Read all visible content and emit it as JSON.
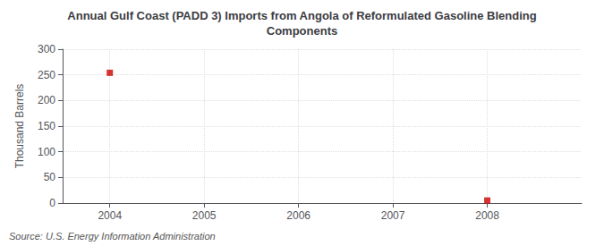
{
  "chart_data": {
    "type": "scatter",
    "title": "Annual Gulf Coast (PADD 3) Imports from Angola of Reformulated Gasoline Blending\nComponents",
    "ylabel": "Thousand Barrels",
    "annotations": [
      "Source: U.S. Energy Information Administration"
    ],
    "x": [
      2004,
      2008
    ],
    "values": [
      254,
      5
    ],
    "color": "#cc0000",
    "marker": "square",
    "xlim": [
      2003.5,
      2009.0
    ],
    "xticks": [
      2004,
      2005,
      2006,
      2007,
      2008
    ],
    "ylim": [
      0,
      300
    ],
    "yticks": [
      0,
      50,
      100,
      150,
      200,
      250,
      300
    ],
    "grid": true
  }
}
